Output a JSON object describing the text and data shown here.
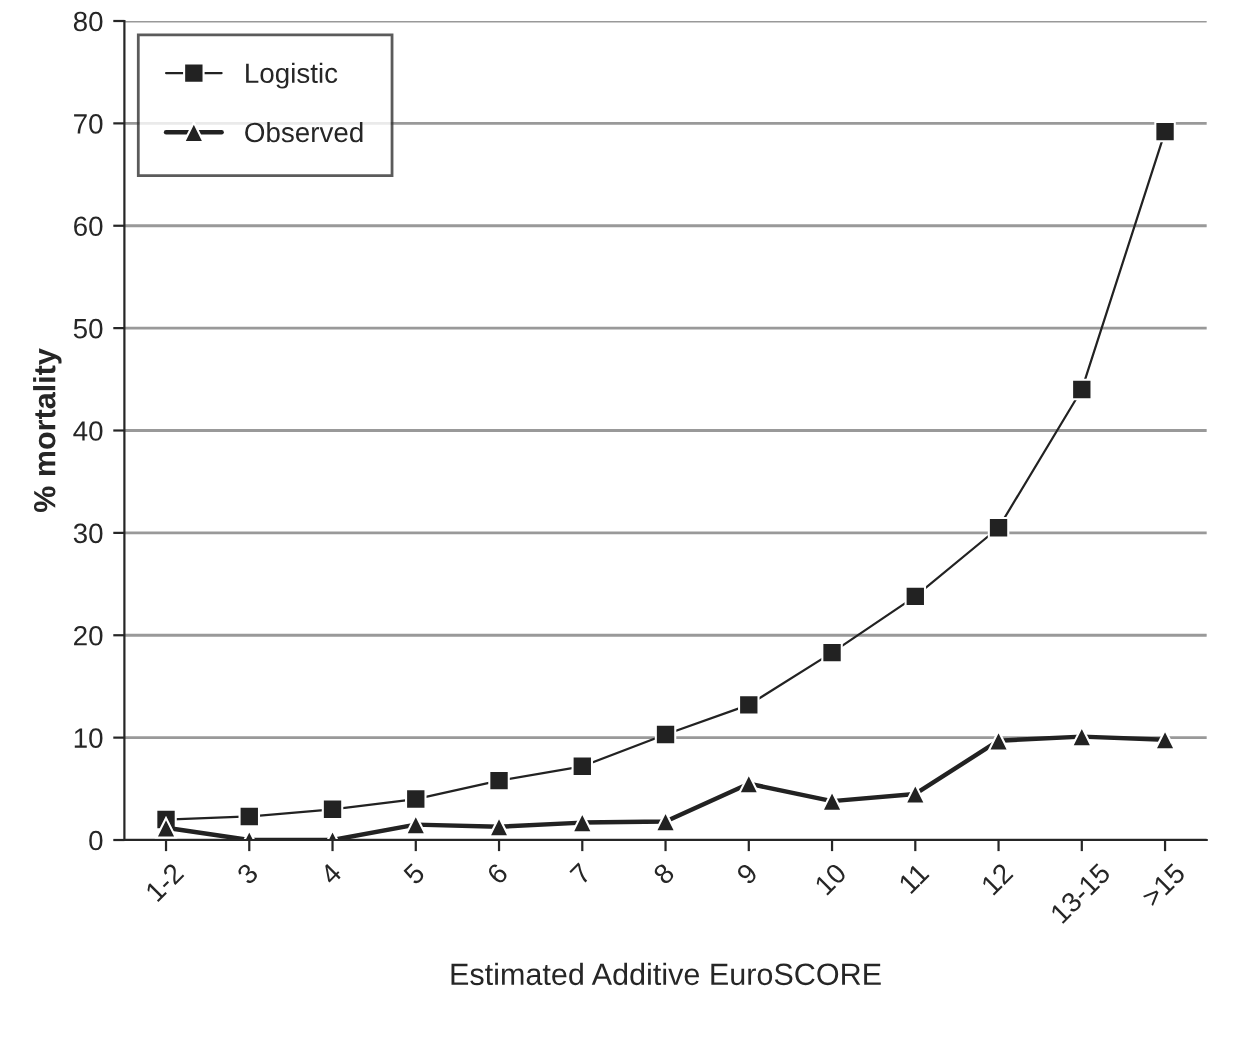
{
  "chart_data": {
    "type": "line",
    "xlabel": "Estimated Additive EuroSCORE",
    "ylabel": "% mortality",
    "categories": [
      "1-2",
      "3",
      "4",
      "5",
      "6",
      "7",
      "8",
      "9",
      "10",
      "11",
      "12",
      "13-15",
      ">15"
    ],
    "series": [
      {
        "name": "Logistic",
        "color": "#222222",
        "marker": "square",
        "values": [
          2,
          2.3,
          3,
          4,
          5.8,
          7.2,
          10.3,
          13.2,
          18.3,
          23.8,
          30.5,
          44,
          69.2
        ]
      },
      {
        "name": "Observed",
        "color": "#222222",
        "marker": "triangle",
        "values": [
          1.2,
          0,
          0,
          1.5,
          1.3,
          1.7,
          1.8,
          5.5,
          3.8,
          4.5,
          9.7,
          10.1,
          9.8
        ]
      }
    ],
    "ylim": [
      0,
      80
    ],
    "yticks": [
      0,
      10,
      20,
      30,
      40,
      50,
      60,
      70,
      80
    ],
    "grid": "y",
    "legend": "top left",
    "line_style": "solid"
  }
}
